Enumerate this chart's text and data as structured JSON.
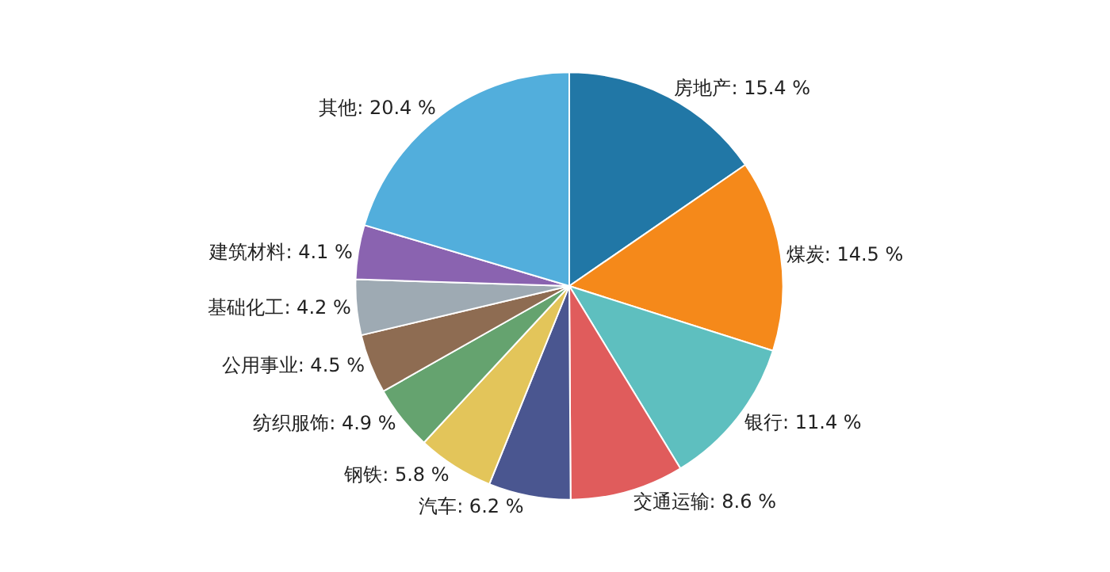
{
  "chart_data": {
    "type": "pie",
    "categories": [
      "房地产",
      "煤炭",
      "银行",
      "交通运输",
      "汽车",
      "钢铁",
      "纺织服饰",
      "公用事业",
      "基础化工",
      "建筑材料",
      "其他"
    ],
    "values": [
      15.4,
      14.5,
      11.4,
      8.6,
      6.2,
      5.8,
      4.9,
      4.5,
      4.2,
      4.1,
      20.4
    ],
    "value_labels": [
      "15.4 %",
      "14.5 %",
      "11.4 %",
      "8.6 %",
      "6.2 %",
      "5.8 %",
      "4.9 %",
      "4.5 %",
      "4.2 %",
      "4.1 %",
      "20.4 %"
    ],
    "colors": [
      "#2177a6",
      "#f5891a",
      "#5ebfbf",
      "#e05c5c",
      "#4a5690",
      "#e3c55a",
      "#65a36f",
      "#8e6c52",
      "#9eaab3",
      "#8a63b0",
      "#52aedc"
    ],
    "legend": false
  }
}
